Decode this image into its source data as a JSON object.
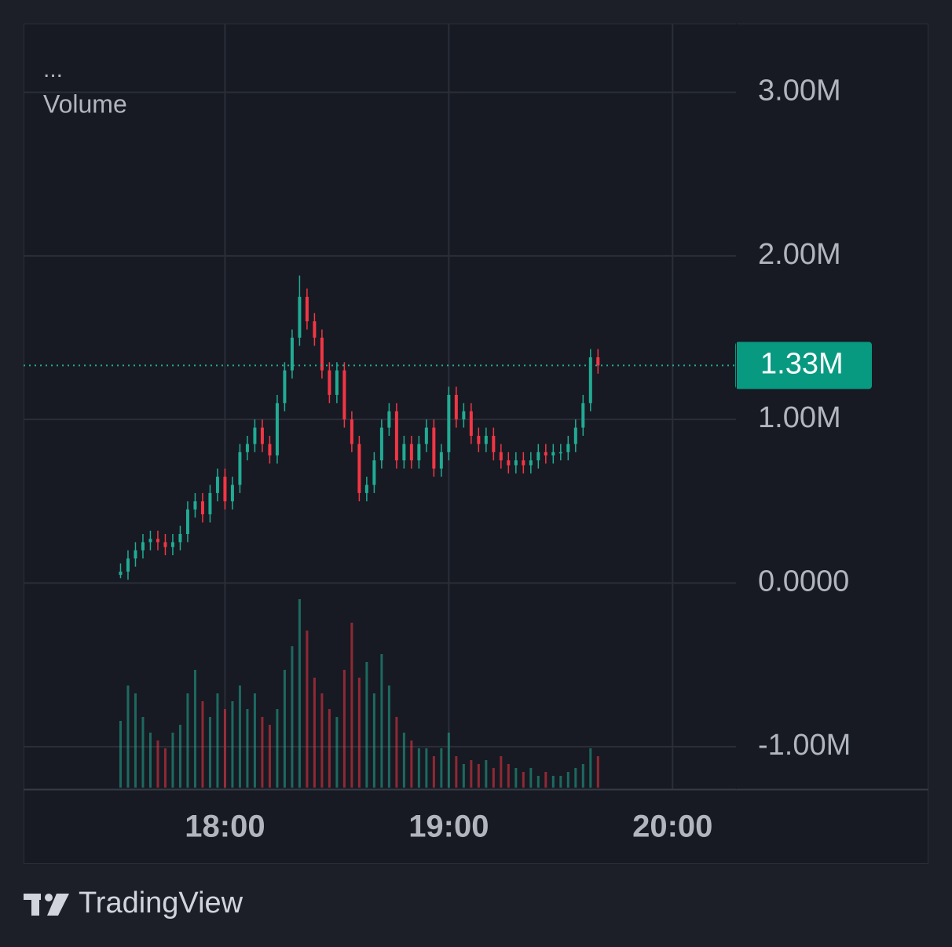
{
  "chart_data": {
    "type": "candlestick",
    "menu": "...",
    "indicator_label": "Volume",
    "x": [
      "17:32",
      "17:34",
      "17:36",
      "17:38",
      "17:40",
      "17:42",
      "17:44",
      "17:46",
      "17:48",
      "17:50",
      "17:52",
      "17:54",
      "17:56",
      "17:58",
      "18:00",
      "18:02",
      "18:04",
      "18:06",
      "18:08",
      "18:10",
      "18:12",
      "18:14",
      "18:16",
      "18:18",
      "18:20",
      "18:22",
      "18:24",
      "18:26",
      "18:28",
      "18:30",
      "18:32",
      "18:34",
      "18:36",
      "18:38",
      "18:40",
      "18:42",
      "18:44",
      "18:46",
      "18:48",
      "18:50",
      "18:52",
      "18:54",
      "18:56",
      "18:58",
      "19:00",
      "19:02",
      "19:04",
      "19:06",
      "19:08",
      "19:10",
      "19:12",
      "19:14",
      "19:16",
      "19:18",
      "19:20",
      "19:22",
      "19:24",
      "19:26",
      "19:28",
      "19:30",
      "19:32",
      "19:34",
      "19:36",
      "19:38",
      "19:40"
    ],
    "open": [
      0.05,
      0.07,
      0.15,
      0.2,
      0.25,
      0.27,
      0.25,
      0.22,
      0.25,
      0.3,
      0.45,
      0.5,
      0.42,
      0.55,
      0.65,
      0.5,
      0.6,
      0.8,
      0.85,
      0.95,
      0.85,
      0.78,
      1.1,
      1.3,
      1.5,
      1.75,
      1.6,
      1.5,
      1.3,
      1.15,
      1.3,
      1.0,
      0.85,
      0.55,
      0.6,
      0.75,
      0.95,
      1.05,
      0.75,
      0.85,
      0.75,
      0.85,
      0.95,
      0.7,
      0.8,
      1.15,
      1.0,
      1.05,
      0.9,
      0.85,
      0.9,
      0.8,
      0.75,
      0.72,
      0.75,
      0.72,
      0.75,
      0.8,
      0.78,
      0.8,
      0.8,
      0.85,
      0.95,
      1.1,
      1.38
    ],
    "high": [
      0.12,
      0.2,
      0.25,
      0.3,
      0.32,
      0.32,
      0.3,
      0.3,
      0.35,
      0.5,
      0.55,
      0.55,
      0.6,
      0.7,
      0.7,
      0.65,
      0.85,
      0.9,
      1.0,
      1.0,
      0.9,
      1.15,
      1.35,
      1.55,
      1.88,
      1.8,
      1.65,
      1.55,
      1.35,
      1.35,
      1.35,
      1.05,
      0.9,
      0.65,
      0.8,
      1.0,
      1.1,
      1.1,
      0.9,
      0.9,
      0.9,
      1.0,
      1.0,
      0.85,
      1.2,
      1.2,
      1.1,
      1.1,
      0.95,
      0.95,
      0.95,
      0.85,
      0.8,
      0.8,
      0.8,
      0.8,
      0.85,
      0.85,
      0.85,
      0.85,
      0.9,
      1.0,
      1.15,
      1.43,
      1.43
    ],
    "low": [
      0.03,
      0.02,
      0.1,
      0.15,
      0.2,
      0.2,
      0.17,
      0.17,
      0.2,
      0.25,
      0.4,
      0.37,
      0.37,
      0.5,
      0.45,
      0.45,
      0.55,
      0.75,
      0.8,
      0.8,
      0.73,
      0.73,
      1.05,
      1.25,
      1.45,
      1.55,
      1.45,
      1.25,
      1.1,
      1.1,
      0.95,
      0.8,
      0.5,
      0.5,
      0.55,
      0.7,
      0.9,
      0.7,
      0.7,
      0.7,
      0.7,
      0.8,
      0.65,
      0.65,
      0.75,
      0.95,
      0.95,
      0.85,
      0.8,
      0.8,
      0.75,
      0.7,
      0.67,
      0.67,
      0.67,
      0.67,
      0.7,
      0.73,
      0.73,
      0.75,
      0.75,
      0.8,
      0.9,
      1.05,
      1.28
    ],
    "close": [
      0.07,
      0.15,
      0.2,
      0.25,
      0.27,
      0.25,
      0.22,
      0.25,
      0.3,
      0.45,
      0.5,
      0.42,
      0.55,
      0.65,
      0.5,
      0.6,
      0.8,
      0.85,
      0.95,
      0.85,
      0.78,
      1.1,
      1.3,
      1.5,
      1.75,
      1.6,
      1.5,
      1.3,
      1.15,
      1.3,
      1.0,
      0.85,
      0.55,
      0.6,
      0.75,
      0.95,
      1.05,
      0.75,
      0.85,
      0.75,
      0.85,
      0.95,
      0.7,
      0.8,
      1.15,
      1.0,
      1.05,
      0.9,
      0.85,
      0.9,
      0.8,
      0.75,
      0.72,
      0.75,
      0.72,
      0.75,
      0.8,
      0.78,
      0.8,
      0.8,
      0.85,
      0.95,
      1.1,
      1.38,
      1.33
    ],
    "volume": [
      85,
      130,
      120,
      90,
      70,
      60,
      50,
      70,
      80,
      120,
      150,
      110,
      90,
      120,
      100,
      110,
      130,
      100,
      120,
      90,
      80,
      100,
      150,
      180,
      240,
      200,
      140,
      120,
      100,
      90,
      150,
      210,
      140,
      160,
      120,
      170,
      130,
      90,
      70,
      60,
      50,
      50,
      40,
      50,
      70,
      40,
      30,
      35,
      30,
      35,
      25,
      40,
      30,
      25,
      20,
      25,
      15,
      20,
      15,
      15,
      20,
      25,
      30,
      50,
      40
    ],
    "up_color": "#22ab94",
    "down_color": "#f23645",
    "xlim": [
      "17:06",
      "20:17"
    ],
    "xticks": [
      "18:00",
      "19:00",
      "20:00"
    ],
    "ylim": [
      -1.26,
      3.42
    ],
    "yticks": [
      {
        "value": 3,
        "label": "3.00M"
      },
      {
        "value": 2,
        "label": "2.00M"
      },
      {
        "value": 0,
        "label": "0.0000"
      },
      {
        "value": -1,
        "label": "-1.00M"
      }
    ],
    "extra_ytick": {
      "value": 1,
      "label": "1.00M"
    },
    "last_price": {
      "value": 1.33,
      "label": "1.33M"
    },
    "grid": true
  },
  "brand": "TradingView"
}
